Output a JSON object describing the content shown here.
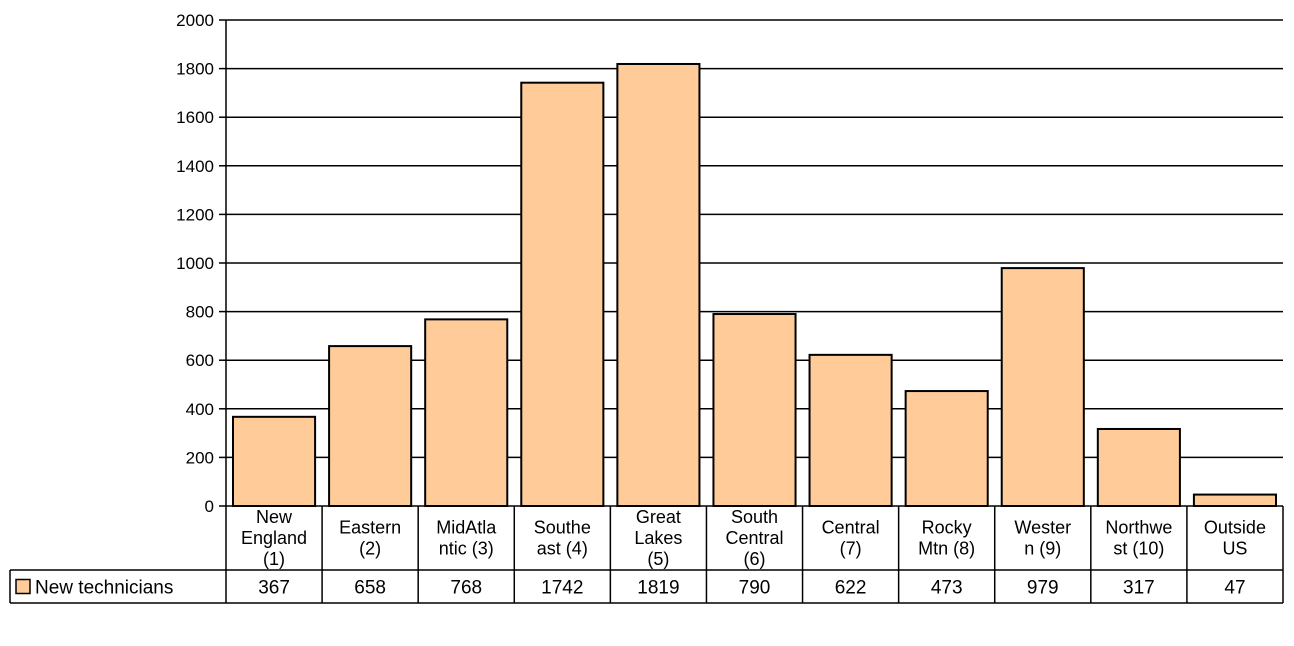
{
  "chart_data": {
    "type": "bar",
    "categories": [
      [
        "New",
        "England",
        "(1)"
      ],
      [
        "Eastern",
        "(2)"
      ],
      [
        "MidAtla",
        "ntic (3)"
      ],
      [
        "Southe",
        "ast (4)"
      ],
      [
        "Great",
        "Lakes",
        "(5)"
      ],
      [
        "South",
        "Central",
        "(6)"
      ],
      [
        "Central",
        "(7)"
      ],
      [
        "Rocky",
        "Mtn (8)"
      ],
      [
        "Wester",
        "n (9)"
      ],
      [
        "Northwe",
        "st (10)"
      ],
      [
        "Outside",
        "US"
      ]
    ],
    "series": [
      {
        "name": "New technicians",
        "values": [
          367,
          658,
          768,
          1742,
          1819,
          790,
          622,
          473,
          979,
          317,
          47
        ]
      }
    ],
    "ylim": [
      0,
      2000
    ],
    "yticks": [
      0,
      200,
      400,
      600,
      800,
      1000,
      1200,
      1400,
      1600,
      1800,
      2000
    ],
    "grid": true,
    "legend": "data-table-left",
    "colors": {
      "bar_fill": "#ffcc99",
      "bar_stroke": "#000000",
      "grid": "#000000"
    }
  }
}
